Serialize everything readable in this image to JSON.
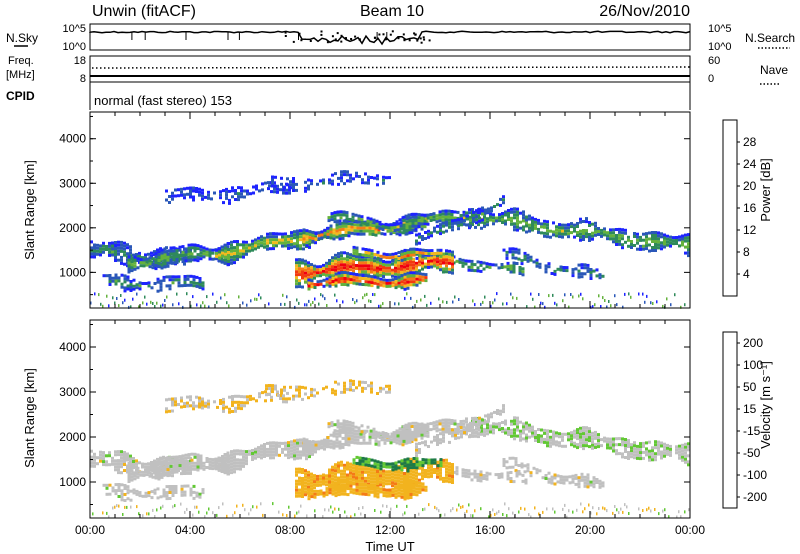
{
  "header": {
    "title": "Unwin (fitACF)",
    "beam": "Beam 10",
    "date": "26/Nov/2010"
  },
  "noise_panel": {
    "left_label": "N.Sky",
    "right_label": "N.Search",
    "left_ticks": [
      "10^5",
      "10^0"
    ],
    "right_ticks": [
      "10^5",
      "10^0"
    ]
  },
  "freq_panel": {
    "left_label_1": "Freq.",
    "left_label_2": "[MHz]",
    "right_label": "Nave",
    "left_ticks": [
      "18",
      "8"
    ],
    "right_ticks": [
      "60",
      "0"
    ]
  },
  "cpid_panel": {
    "label": "CPID",
    "text": "normal (fast stereo) 153"
  },
  "colors": {
    "power_scale": [
      "#1e24ff",
      "#2a57b8",
      "#2f8a5a",
      "#64b23c",
      "#f2ba1e",
      "#f47b16",
      "#f23a10",
      "#f00010"
    ],
    "velocity_scale": [
      "#1e24ff",
      "#1e7a47",
      "#62c834",
      "#c0c0c0",
      "#f2b31e",
      "#f47b16",
      "#f2351a",
      "#f00010"
    ]
  },
  "chart_data": [
    {
      "type": "heatmap",
      "name": "power",
      "ylabel": "Slant Range [km]",
      "xlabel": "",
      "y_ticks": [
        "1000",
        "2000",
        "3000",
        "4000"
      ],
      "y_tick_values": [
        1000,
        2000,
        3000,
        4000
      ],
      "ylim": [
        200,
        4600
      ],
      "xlim": [
        0,
        24
      ],
      "colorbar_label": "Power [dB]",
      "colorbar_ticks": [
        "4",
        "8",
        "12",
        "16",
        "20",
        "24",
        "28"
      ],
      "colorbar_range": [
        0,
        32
      ]
    },
    {
      "type": "heatmap",
      "name": "velocity",
      "ylabel": "Slant Range [km]",
      "xlabel": "Time UT",
      "y_ticks": [
        "1000",
        "2000",
        "3000",
        "4000"
      ],
      "y_tick_values": [
        1000,
        2000,
        3000,
        4000
      ],
      "ylim": [
        200,
        4600
      ],
      "x_ticks": [
        "00:00",
        "04:00",
        "08:00",
        "12:00",
        "16:00",
        "20:00",
        "00:00"
      ],
      "x_tick_values": [
        0,
        4,
        8,
        12,
        16,
        20,
        24
      ],
      "xlim": [
        0,
        24
      ],
      "colorbar_label": "Velocity [m s⁻¹]",
      "colorbar_ticks": [
        "200",
        "100",
        "50",
        "15",
        "-15",
        "-50",
        "-100",
        "-200"
      ]
    }
  ]
}
